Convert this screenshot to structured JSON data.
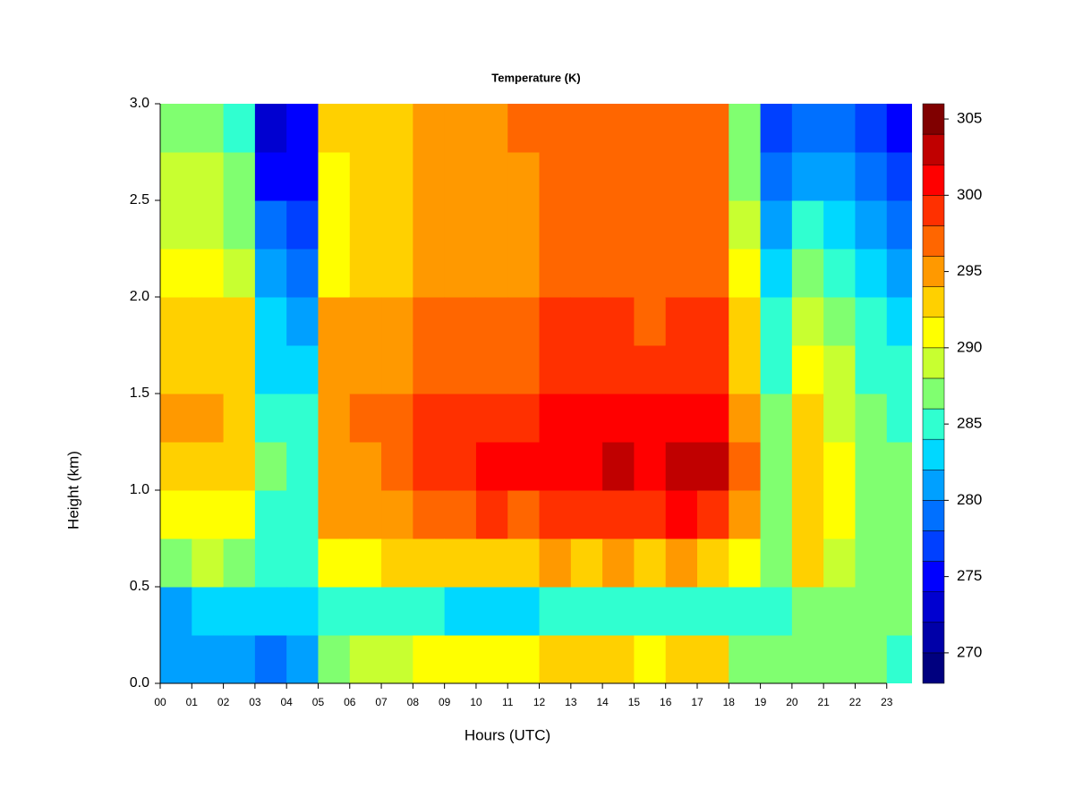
{
  "chart_data": {
    "type": "heatmap",
    "title": "Temperature (K)",
    "x_label": "Hours (UTC)",
    "y_label": "Height (km)",
    "x": [
      0.5,
      1.5,
      2.5,
      3.5,
      4.5,
      5.5,
      6.5,
      7.5,
      8.5,
      9.5,
      10.5,
      11.5,
      12.5,
      13.5,
      14.5,
      15.5,
      16.5,
      17.5,
      18.5,
      19.5,
      20.5,
      21.5,
      22.5,
      23.5
    ],
    "y": [
      0.125,
      0.375,
      0.625,
      0.875,
      1.125,
      1.375,
      1.625,
      1.875,
      2.125,
      2.375,
      2.625,
      2.875
    ],
    "z": [
      [
        280,
        281,
        287,
        290,
        293,
        294,
        292,
        293,
        290,
        289,
        288,
        286
      ],
      [
        280,
        282,
        288,
        291,
        293,
        294,
        292,
        293,
        290,
        289,
        288,
        286
      ],
      [
        280,
        282,
        287,
        290,
        292,
        293,
        292,
        292,
        288,
        287,
        286,
        285
      ],
      [
        279,
        282,
        284,
        285,
        286,
        285,
        283,
        282,
        280,
        278,
        275,
        273
      ],
      [
        281,
        283,
        284,
        285,
        285,
        284,
        283,
        281,
        279,
        277,
        275,
        274
      ],
      [
        286,
        284,
        291,
        294,
        295,
        295,
        294,
        294,
        291,
        291,
        291,
        292
      ],
      [
        288,
        284,
        291,
        294,
        295,
        296,
        295,
        295,
        293,
        292,
        292,
        292
      ],
      [
        289,
        284,
        292,
        295,
        296,
        296,
        295,
        295,
        293,
        293,
        293,
        293
      ],
      [
        290,
        284,
        293,
        297,
        298,
        298,
        296,
        296,
        294,
        294,
        294,
        294
      ],
      [
        291,
        283,
        292,
        297,
        299,
        298,
        296,
        296,
        294,
        294,
        295,
        295
      ],
      [
        291,
        283,
        293,
        298,
        300,
        299,
        297,
        297,
        295,
        295,
        295,
        295
      ],
      [
        291,
        283,
        293,
        297,
        300,
        299,
        297,
        297,
        295,
        295,
        295,
        296
      ],
      [
        292,
        284,
        294,
        299,
        301,
        300,
        298,
        298,
        296,
        296,
        296,
        296
      ],
      [
        292,
        284,
        293,
        298,
        301,
        300,
        298,
        298,
        296,
        296,
        296,
        296
      ],
      [
        293,
        284,
        294,
        299,
        302,
        301,
        298,
        298,
        296,
        296,
        296,
        296
      ],
      [
        290,
        284,
        293,
        298,
        300,
        300,
        298,
        297,
        296,
        296,
        296,
        296
      ],
      [
        293,
        284,
        294,
        300,
        302,
        301,
        299,
        298,
        296,
        296,
        297,
        297
      ],
      [
        293,
        284,
        293,
        299,
        302,
        300,
        299,
        298,
        296,
        296,
        297,
        297
      ],
      [
        287,
        284,
        290,
        294,
        296,
        294,
        293,
        292,
        290,
        289,
        287,
        286
      ],
      [
        286,
        285,
        286,
        287,
        287,
        286,
        285,
        284,
        282,
        280,
        278,
        276
      ],
      [
        286,
        287,
        292,
        293,
        293,
        292,
        290,
        289,
        286,
        284,
        281,
        278
      ],
      [
        287,
        287,
        289,
        290,
        290,
        289,
        288,
        287,
        285,
        283,
        280,
        278
      ],
      [
        286,
        287,
        287,
        287,
        287,
        286,
        285,
        284,
        282,
        280,
        278,
        276
      ],
      [
        285,
        286,
        286,
        286,
        286,
        285,
        284,
        283,
        281,
        279,
        277,
        275
      ]
    ],
    "xlim": [
      0,
      23.8
    ],
    "ylim": [
      0,
      3
    ],
    "xticks": [
      {
        "value": 0,
        "label": "00"
      },
      {
        "value": 1,
        "label": "01"
      },
      {
        "value": 2,
        "label": "02"
      },
      {
        "value": 3,
        "label": "03"
      },
      {
        "value": 4,
        "label": "04"
      },
      {
        "value": 5,
        "label": "05"
      },
      {
        "value": 6,
        "label": "06"
      },
      {
        "value": 7,
        "label": "07"
      },
      {
        "value": 8,
        "label": "08"
      },
      {
        "value": 9,
        "label": "09"
      },
      10,
      11,
      12,
      13,
      14,
      15,
      16,
      17,
      18,
      19,
      20,
      21,
      22,
      23
    ],
    "yticks": [
      {
        "value": 0,
        "label": "0.0"
      },
      0.5,
      {
        "value": 1,
        "label": "1.0"
      },
      1.5,
      {
        "value": 2,
        "label": "2.0"
      },
      2.5,
      {
        "value": 3,
        "label": "3.0"
      }
    ],
    "levels": [
      268,
      270,
      272,
      274,
      276,
      278,
      280,
      282,
      284,
      286,
      288,
      290,
      292,
      294,
      296,
      298,
      300,
      302,
      304,
      306
    ],
    "colors": [
      "#00007F",
      "#0000A8",
      "#0000D0",
      "#0000FF",
      "#0040FF",
      "#0070FF",
      "#00A0FF",
      "#00D8FF",
      "#30FFD0",
      "#80FF70",
      "#C8FF30",
      "#FFFF00",
      "#FFD000",
      "#FF9900",
      "#FF6600",
      "#FF3000",
      "#FF0000",
      "#C00000",
      "#800000"
    ],
    "colorbar_ticks": [
      270,
      275,
      280,
      285,
      290,
      295,
      300,
      305
    ]
  }
}
